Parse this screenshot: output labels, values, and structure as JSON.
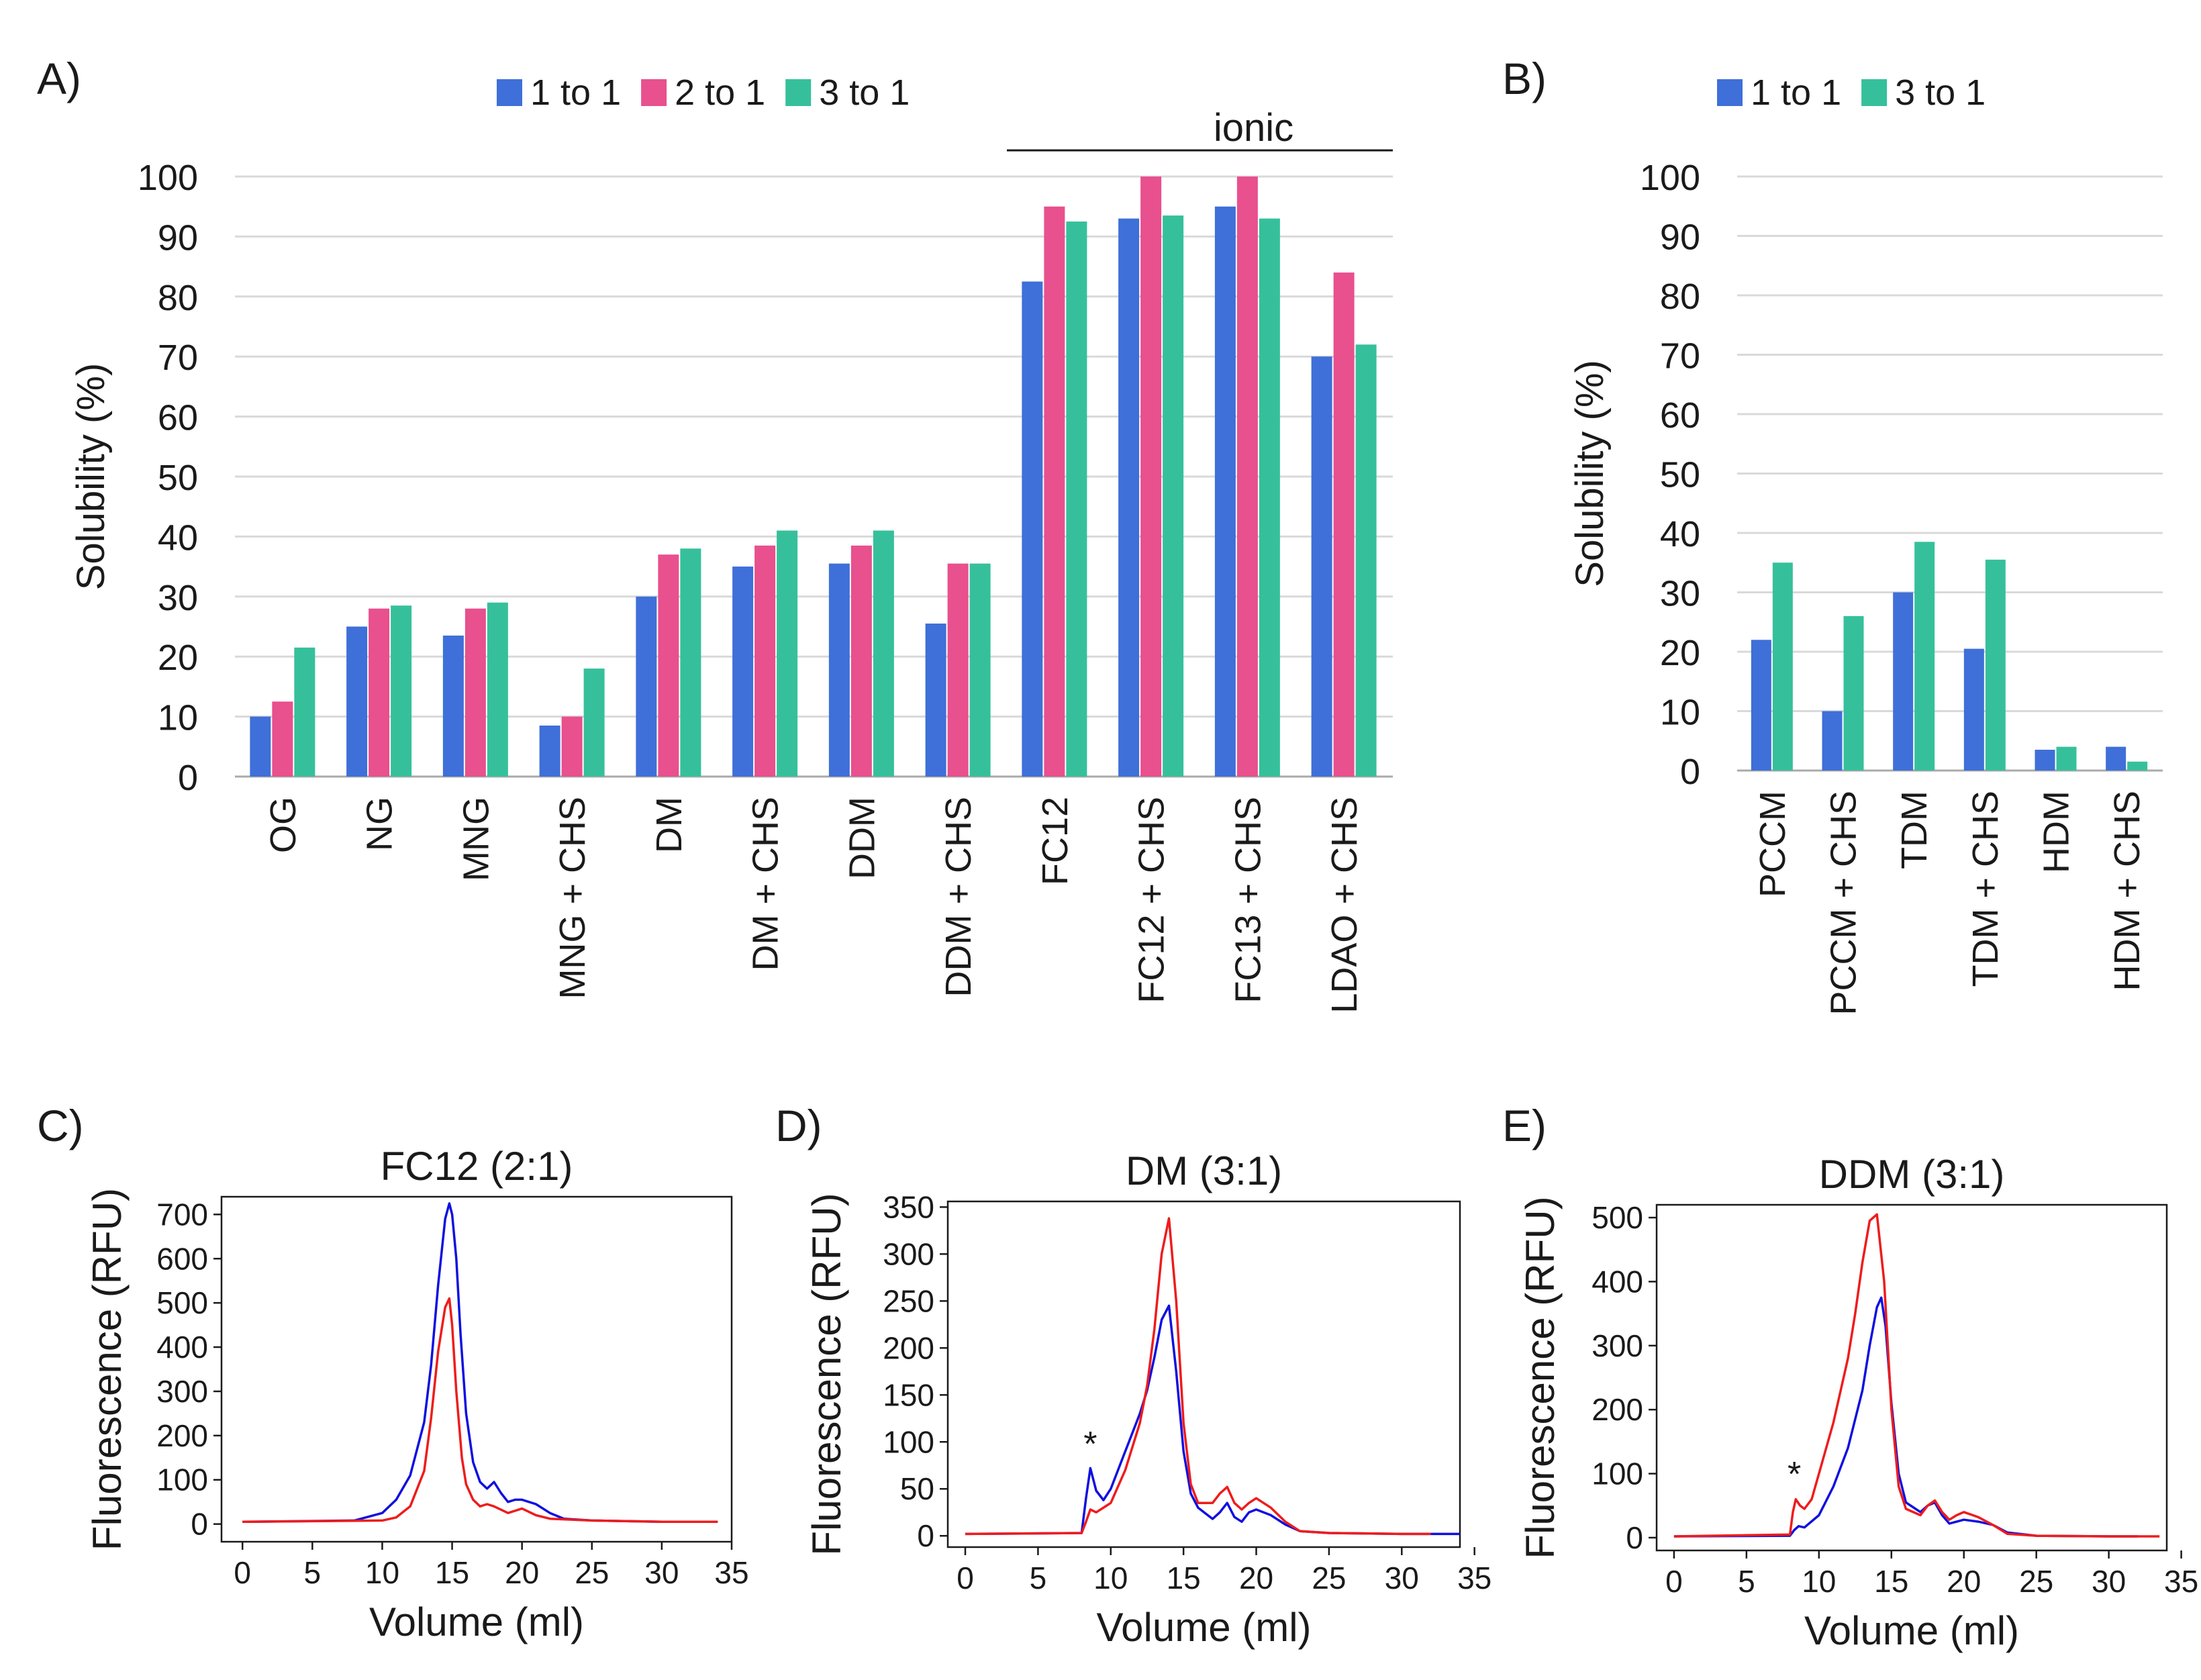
{
  "colors": {
    "s1": "#3f6fd8",
    "s2": "#e8508e",
    "s3": "#35c09b",
    "blue_line": "#1010e0",
    "red_line": "#ee1c1c",
    "grid": "#d9d9d9",
    "axis": "#aaaaaa",
    "text": "#1a1a1a"
  },
  "chart_data": [
    {
      "panel": "A)",
      "type": "bar",
      "ylabel": "Solubility (%)",
      "ylim": [
        0,
        100
      ],
      "yticks": [
        0,
        10,
        20,
        30,
        40,
        50,
        60,
        70,
        80,
        90,
        100
      ],
      "grid": true,
      "annotation": "ionic",
      "annotation_start_category": 8,
      "legend_position": "top",
      "categories": [
        "OG",
        "NG",
        "MNG",
        "MNG + CHS",
        "DM",
        "DM   + CHS",
        "DDM",
        "DDM + CHS",
        "FC12",
        "FC12 + CHS",
        "FC13 + CHS",
        "LDAO + CHS"
      ],
      "series": [
        {
          "name": "1 to 1",
          "color_key": "s1",
          "values": [
            10,
            25,
            23.5,
            8.5,
            30,
            35,
            35.5,
            25.5,
            82.5,
            93,
            95,
            70
          ]
        },
        {
          "name": "2 to 1",
          "color_key": "s2",
          "values": [
            12.5,
            28,
            28,
            10,
            37,
            38.5,
            38.5,
            35.5,
            95,
            100,
            100,
            84
          ]
        },
        {
          "name": "3 to 1",
          "color_key": "s3",
          "values": [
            21.5,
            28.5,
            29,
            18,
            38,
            41,
            41,
            35.5,
            92.5,
            93.5,
            93,
            72
          ]
        }
      ]
    },
    {
      "panel": "B)",
      "type": "bar",
      "ylabel": "Solubility (%)",
      "ylim": [
        0,
        100
      ],
      "yticks": [
        0,
        10,
        20,
        30,
        40,
        50,
        60,
        70,
        80,
        90,
        100
      ],
      "grid": true,
      "legend_position": "top",
      "categories": [
        "PCCM",
        "PCCM + CHS",
        "TDM",
        "TDM + CHS",
        "HDM",
        "HDM + CHS"
      ],
      "series": [
        {
          "name": "1 to 1",
          "color_key": "s1",
          "values": [
            22,
            10,
            30,
            20.5,
            3.5,
            4
          ]
        },
        {
          "name": "3 to 1",
          "color_key": "s3",
          "values": [
            35,
            26,
            38.5,
            35.5,
            4,
            1.5
          ]
        }
      ]
    },
    {
      "panel": "C)",
      "type": "line",
      "title": "FC12 (2:1)",
      "xlabel": "Volume (ml)",
      "ylabel": "Fluorescence (RFU)",
      "xlim": [
        -1.5,
        35
      ],
      "ylim": [
        -40,
        740
      ],
      "xticks": [
        0,
        5,
        10,
        15,
        20,
        25,
        30,
        35
      ],
      "yticks": [
        0,
        100,
        200,
        300,
        400,
        500,
        600,
        700
      ],
      "series": [
        {
          "name": "blue",
          "color_key": "blue_line",
          "x": [
            0,
            8,
            10,
            11,
            12,
            13,
            13.5,
            14,
            14.5,
            14.8,
            15,
            15.3,
            15.6,
            16,
            16.5,
            17,
            17.5,
            18,
            18.5,
            19,
            19.5,
            20,
            21,
            22,
            23,
            25,
            30,
            34
          ],
          "y": [
            5,
            8,
            25,
            55,
            110,
            230,
            360,
            540,
            690,
            725,
            700,
            600,
            430,
            250,
            140,
            95,
            80,
            95,
            70,
            50,
            55,
            55,
            45,
            25,
            12,
            8,
            5,
            5
          ]
        },
        {
          "name": "red",
          "color_key": "red_line",
          "x": [
            0,
            10,
            11,
            12,
            13,
            13.5,
            14,
            14.5,
            14.8,
            15,
            15.3,
            15.7,
            16,
            16.5,
            17,
            17.5,
            18,
            19,
            20,
            21,
            22,
            25,
            30,
            34
          ],
          "y": [
            5,
            8,
            15,
            40,
            120,
            240,
            390,
            490,
            510,
            450,
            300,
            150,
            90,
            55,
            40,
            45,
            40,
            25,
            35,
            20,
            12,
            8,
            5,
            5
          ]
        }
      ]
    },
    {
      "panel": "D)",
      "type": "line",
      "title": "DM (3:1)",
      "xlabel": "Volume (ml)",
      "ylabel": "Fluorescence (RFU)",
      "annotation": "*",
      "annotation_x": 8.6,
      "annotation_y": 78,
      "xlim": [
        -1.2,
        34
      ],
      "ylim": [
        -12,
        356
      ],
      "xticks": [
        0,
        5,
        10,
        15,
        20,
        25,
        30,
        35
      ],
      "yticks": [
        0,
        50,
        100,
        150,
        200,
        250,
        300,
        350
      ],
      "series": [
        {
          "name": "blue",
          "color_key": "blue_line",
          "x": [
            0,
            8,
            8.3,
            8.6,
            9,
            9.5,
            10,
            11,
            12,
            12.5,
            13,
            13.5,
            14,
            14.5,
            15,
            15.5,
            16,
            17,
            17.5,
            18,
            18.5,
            19,
            19.5,
            20,
            21,
            22,
            23,
            25,
            30,
            34
          ],
          "y": [
            2,
            3,
            40,
            72,
            48,
            38,
            50,
            90,
            130,
            155,
            190,
            230,
            245,
            175,
            90,
            45,
            30,
            18,
            25,
            35,
            20,
            15,
            25,
            28,
            22,
            12,
            5,
            3,
            2,
            2
          ]
        },
        {
          "name": "red",
          "color_key": "red_line",
          "x": [
            0,
            8,
            8.3,
            8.6,
            9,
            10,
            11,
            12,
            12.5,
            13,
            13.5,
            14,
            14.5,
            15,
            15.5,
            16,
            17,
            17.5,
            18,
            18.5,
            19,
            19.5,
            20,
            21,
            22,
            23,
            25,
            30,
            32
          ],
          "y": [
            2,
            3,
            15,
            28,
            25,
            35,
            70,
            120,
            160,
            220,
            300,
            338,
            250,
            120,
            55,
            35,
            35,
            45,
            52,
            35,
            28,
            35,
            40,
            30,
            15,
            5,
            3,
            2,
            2
          ]
        }
      ]
    },
    {
      "panel": "E)",
      "type": "line",
      "title": "DDM (3:1)",
      "xlabel": "Volume (ml)",
      "ylabel": "Fluorescence (RFU)",
      "annotation": "*",
      "annotation_x": 8.3,
      "annotation_y": 70,
      "xlim": [
        -1.2,
        34
      ],
      "ylim": [
        -20,
        520
      ],
      "xticks": [
        0,
        5,
        10,
        15,
        20,
        25,
        30,
        35
      ],
      "yticks": [
        0,
        100,
        200,
        300,
        400,
        500
      ],
      "series": [
        {
          "name": "blue",
          "color_key": "blue_line",
          "x": [
            0,
            8,
            8.3,
            8.6,
            9,
            10,
            11,
            12,
            13,
            13.5,
            14,
            14.3,
            14.6,
            15,
            15.5,
            16,
            17,
            17.5,
            18,
            18.5,
            19,
            20,
            21,
            22,
            23,
            25,
            30,
            32
          ],
          "y": [
            2,
            3,
            12,
            18,
            16,
            35,
            80,
            140,
            230,
            300,
            360,
            375,
            330,
            210,
            100,
            55,
            40,
            50,
            55,
            35,
            22,
            28,
            25,
            20,
            8,
            3,
            2,
            2
          ]
        },
        {
          "name": "red",
          "color_key": "red_line",
          "x": [
            0,
            8,
            8.2,
            8.4,
            8.7,
            9,
            9.5,
            10,
            11,
            12,
            12.5,
            13,
            13.5,
            14,
            14.5,
            15,
            15.5,
            16,
            17,
            17.5,
            18,
            18.5,
            19,
            19.5,
            20,
            21,
            22,
            23,
            25,
            30,
            33.5
          ],
          "y": [
            2,
            5,
            40,
            60,
            50,
            45,
            60,
            100,
            180,
            280,
            350,
            430,
            495,
            505,
            400,
            200,
            80,
            45,
            35,
            50,
            58,
            40,
            28,
            35,
            40,
            32,
            20,
            6,
            3,
            2,
            2
          ]
        }
      ]
    }
  ]
}
